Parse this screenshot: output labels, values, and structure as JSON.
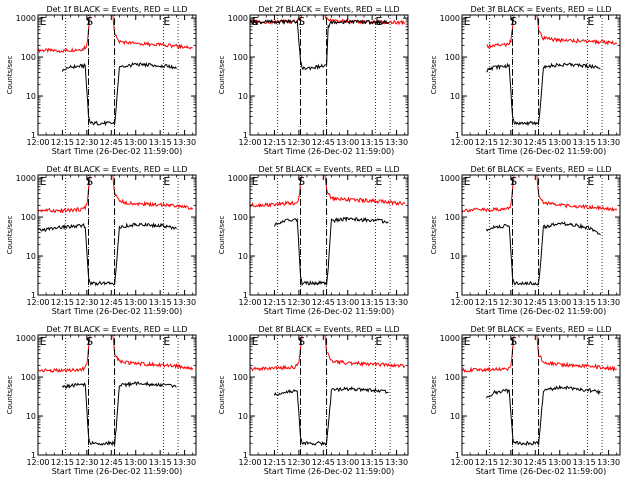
{
  "chart_data": [
    {
      "type": "line",
      "title": "Det 1f BLACK = Events, RED = LLD",
      "xlabel": "Start Time (26-Dec-02 11:59:00)",
      "ylabel": "Counts/sec",
      "x_tick_labels": [
        "12:00",
        "12:15",
        "12:30",
        "12:45",
        "13:00",
        "13:15",
        "13:30"
      ],
      "x_tick_minutes": [
        0,
        15,
        30,
        45,
        60,
        75,
        90
      ],
      "xlim_minutes": [
        0,
        97
      ],
      "y_tick_labels": [
        "1",
        "10",
        "100",
        "1000"
      ],
      "ylim": [
        1,
        1200
      ],
      "yscale": "log",
      "dotted_vlines_minutes": [
        17,
        31,
        47,
        77,
        86
      ],
      "dashed_vlines_minutes": [
        31,
        47
      ],
      "markers": [
        {
          "label": "E",
          "minute": 1
        },
        {
          "label": "S",
          "minute": 32
        },
        {
          "label": "E",
          "minute": 77
        }
      ],
      "series": [
        {
          "name": "LLD",
          "color": "#ff0000",
          "x": [
            0,
            15,
            28,
            30,
            31,
            32,
            46,
            47,
            50,
            60,
            70,
            80,
            90,
            95
          ],
          "values": [
            150,
            145,
            160,
            200,
            500,
            1200,
            1200,
            400,
            250,
            220,
            210,
            200,
            180,
            170
          ]
        },
        {
          "name": "Events",
          "color": "#000000",
          "x": [
            15,
            20,
            29,
            31,
            32,
            47,
            48,
            50,
            60,
            70,
            80,
            85
          ],
          "values": [
            45,
            55,
            60,
            3,
            2,
            2,
            5,
            55,
            65,
            62,
            58,
            50
          ]
        }
      ]
    },
    {
      "type": "line",
      "title": "Det 2f BLACK = Events, RED = LLD",
      "xlabel": "Start Time (26-Dec-02 11:59:00)",
      "ylabel": "Counts/sec",
      "x_tick_labels": [
        "12:00",
        "12:15",
        "12:30",
        "12:45",
        "13:00",
        "13:15",
        "13:30"
      ],
      "x_tick_minutes": [
        0,
        15,
        30,
        45,
        60,
        75,
        90
      ],
      "xlim_minutes": [
        0,
        97
      ],
      "y_tick_labels": [
        "1",
        "10",
        "100",
        "1000"
      ],
      "ylim": [
        1,
        1200
      ],
      "yscale": "log",
      "dotted_vlines_minutes": [
        17,
        31,
        47,
        77,
        86
      ],
      "dashed_vlines_minutes": [
        31,
        47
      ],
      "markers": [
        {
          "label": "E",
          "minute": 1
        },
        {
          "label": "S",
          "minute": 32
        },
        {
          "label": "E",
          "minute": 77
        }
      ],
      "series": [
        {
          "name": "LLD",
          "color": "#ff0000",
          "x": [
            0,
            15,
            28,
            30,
            31,
            32,
            46,
            47,
            50,
            60,
            70,
            80,
            90,
            95
          ],
          "values": [
            800,
            800,
            820,
            900,
            1000,
            1200,
            1200,
            1000,
            850,
            820,
            800,
            790,
            780,
            770
          ]
        },
        {
          "name": "Events",
          "color": "#000000",
          "x": [
            0,
            15,
            29,
            31,
            32,
            47,
            48,
            50,
            60,
            70,
            80,
            85
          ],
          "values": [
            800,
            800,
            820,
            80,
            50,
            60,
            600,
            800,
            800,
            790,
            780,
            780
          ]
        }
      ]
    },
    {
      "type": "line",
      "title": "Det 3f BLACK = Events, RED = LLD",
      "xlabel": "Start Time (26-Dec-02 11:59:00)",
      "ylabel": "Counts/sec",
      "x_tick_labels": [
        "12:00",
        "12:15",
        "12:30",
        "12:45",
        "13:00",
        "13:15",
        "13:30"
      ],
      "x_tick_minutes": [
        0,
        15,
        30,
        45,
        60,
        75,
        90
      ],
      "xlim_minutes": [
        0,
        97
      ],
      "y_tick_labels": [
        "1",
        "10",
        "100",
        "1000"
      ],
      "ylim": [
        1,
        1200
      ],
      "yscale": "log",
      "dotted_vlines_minutes": [
        17,
        31,
        47,
        77,
        86
      ],
      "dashed_vlines_minutes": [
        31,
        47
      ],
      "markers": [
        {
          "label": "E",
          "minute": 1
        },
        {
          "label": "S",
          "minute": 32
        },
        {
          "label": "E",
          "minute": 77
        }
      ],
      "series": [
        {
          "name": "LLD",
          "color": "#ff0000",
          "x": [
            15,
            20,
            28,
            30,
            31,
            32,
            46,
            47,
            50,
            60,
            70,
            80,
            90,
            95
          ],
          "values": [
            190,
            200,
            210,
            260,
            600,
            1200,
            1200,
            500,
            300,
            270,
            260,
            250,
            240,
            220
          ]
        },
        {
          "name": "Events",
          "color": "#000000",
          "x": [
            15,
            20,
            29,
            31,
            32,
            47,
            48,
            50,
            60,
            70,
            80,
            85
          ],
          "values": [
            45,
            55,
            60,
            3,
            2,
            2,
            5,
            55,
            65,
            62,
            58,
            50
          ]
        }
      ]
    },
    {
      "type": "line",
      "title": "Det 4f BLACK = Events, RED = LLD",
      "xlabel": "Start Time (26-Dec-02 11:59:00)",
      "ylabel": "Counts/sec",
      "x_tick_labels": [
        "12:00",
        "12:15",
        "12:30",
        "12:45",
        "13:00",
        "13:15",
        "13:30"
      ],
      "x_tick_minutes": [
        0,
        15,
        30,
        45,
        60,
        75,
        90
      ],
      "xlim_minutes": [
        0,
        97
      ],
      "y_tick_labels": [
        "1",
        "10",
        "100",
        "1000"
      ],
      "ylim": [
        1,
        1200
      ],
      "yscale": "log",
      "dotted_vlines_minutes": [
        17,
        31,
        47,
        77,
        86
      ],
      "dashed_vlines_minutes": [
        31,
        47
      ],
      "markers": [
        {
          "label": "E",
          "minute": 1
        },
        {
          "label": "S",
          "minute": 32
        },
        {
          "label": "E",
          "minute": 77
        }
      ],
      "series": [
        {
          "name": "LLD",
          "color": "#ff0000",
          "x": [
            0,
            15,
            28,
            30,
            31,
            32,
            46,
            47,
            50,
            60,
            70,
            80,
            90,
            95
          ],
          "values": [
            150,
            145,
            160,
            200,
            500,
            1200,
            1200,
            400,
            250,
            220,
            210,
            200,
            180,
            170
          ]
        },
        {
          "name": "Events",
          "color": "#000000",
          "x": [
            0,
            15,
            29,
            31,
            32,
            47,
            48,
            50,
            60,
            70,
            80,
            85
          ],
          "values": [
            45,
            55,
            60,
            3,
            2,
            2,
            5,
            55,
            65,
            62,
            58,
            50
          ]
        }
      ]
    },
    {
      "type": "line",
      "title": "Det 5f BLACK = Events, RED = LLD",
      "xlabel": "Start Time (26-Dec-02 11:59:00)",
      "ylabel": "Counts/sec",
      "x_tick_labels": [
        "12:00",
        "12:15",
        "12:30",
        "12:45",
        "13:00",
        "13:15",
        "13:30"
      ],
      "x_tick_minutes": [
        0,
        15,
        30,
        45,
        60,
        75,
        90
      ],
      "xlim_minutes": [
        0,
        97
      ],
      "y_tick_labels": [
        "1",
        "10",
        "100",
        "1000"
      ],
      "ylim": [
        1,
        1200
      ],
      "yscale": "log",
      "dotted_vlines_minutes": [
        17,
        31,
        47,
        77,
        86
      ],
      "dashed_vlines_minutes": [
        31,
        47
      ],
      "markers": [
        {
          "label": "E",
          "minute": 1
        },
        {
          "label": "S",
          "minute": 32
        },
        {
          "label": "E",
          "minute": 77
        }
      ],
      "series": [
        {
          "name": "LLD",
          "color": "#ff0000",
          "x": [
            0,
            15,
            28,
            30,
            31,
            32,
            46,
            47,
            50,
            60,
            70,
            80,
            90,
            95
          ],
          "values": [
            200,
            210,
            230,
            300,
            700,
            1200,
            1200,
            500,
            300,
            280,
            270,
            250,
            230,
            220
          ]
        },
        {
          "name": "Events",
          "color": "#000000",
          "x": [
            15,
            20,
            29,
            31,
            32,
            47,
            48,
            50,
            60,
            70,
            80,
            85
          ],
          "values": [
            60,
            80,
            85,
            3,
            2,
            2,
            5,
            80,
            90,
            85,
            80,
            75
          ]
        }
      ]
    },
    {
      "type": "line",
      "title": "Det 6f BLACK = Events, RED = LLD",
      "xlabel": "Start Time (26-Dec-02 11:59:00)",
      "ylabel": "Counts/sec",
      "x_tick_labels": [
        "12:00",
        "12:15",
        "12:30",
        "12:45",
        "13:00",
        "13:15",
        "13:30"
      ],
      "x_tick_minutes": [
        0,
        15,
        30,
        45,
        60,
        75,
        90
      ],
      "xlim_minutes": [
        0,
        97
      ],
      "y_tick_labels": [
        "1",
        "10",
        "100",
        "1000"
      ],
      "ylim": [
        1,
        1200
      ],
      "yscale": "log",
      "dotted_vlines_minutes": [
        17,
        31,
        47,
        77,
        86
      ],
      "dashed_vlines_minutes": [
        31,
        47
      ],
      "markers": [
        {
          "label": "E",
          "minute": 1
        },
        {
          "label": "S",
          "minute": 32
        },
        {
          "label": "E",
          "minute": 77
        }
      ],
      "series": [
        {
          "name": "LLD",
          "color": "#ff0000",
          "x": [
            0,
            15,
            28,
            30,
            31,
            32,
            46,
            47,
            50,
            60,
            70,
            80,
            90,
            95
          ],
          "values": [
            150,
            155,
            160,
            200,
            500,
            1200,
            1200,
            400,
            230,
            200,
            190,
            180,
            160,
            150
          ]
        },
        {
          "name": "Events",
          "color": "#000000",
          "x": [
            15,
            20,
            29,
            31,
            32,
            47,
            48,
            50,
            60,
            70,
            80,
            85
          ],
          "values": [
            45,
            55,
            60,
            3,
            2,
            2,
            5,
            55,
            70,
            62,
            50,
            35
          ]
        }
      ]
    },
    {
      "type": "line",
      "title": "Det 7f BLACK = Events, RED = LLD",
      "xlabel": "Start Time (26-Dec-02 11:59:00)",
      "ylabel": "Counts/sec",
      "x_tick_labels": [
        "12:00",
        "12:15",
        "12:30",
        "12:45",
        "13:00",
        "13:15",
        "13:30"
      ],
      "x_tick_minutes": [
        0,
        15,
        30,
        45,
        60,
        75,
        90
      ],
      "xlim_minutes": [
        0,
        97
      ],
      "y_tick_labels": [
        "1",
        "10",
        "100",
        "1000"
      ],
      "ylim": [
        1,
        1200
      ],
      "yscale": "log",
      "dotted_vlines_minutes": [
        17,
        31,
        47,
        77,
        86
      ],
      "dashed_vlines_minutes": [
        31,
        47
      ],
      "markers": [
        {
          "label": "E",
          "minute": 1
        },
        {
          "label": "S",
          "minute": 32
        },
        {
          "label": "E",
          "minute": 77
        }
      ],
      "series": [
        {
          "name": "LLD",
          "color": "#ff0000",
          "x": [
            0,
            15,
            28,
            30,
            31,
            32,
            46,
            47,
            50,
            60,
            70,
            80,
            90,
            95
          ],
          "values": [
            150,
            145,
            160,
            200,
            500,
            1200,
            1200,
            400,
            250,
            220,
            210,
            200,
            180,
            170
          ]
        },
        {
          "name": "Events",
          "color": "#000000",
          "x": [
            15,
            20,
            29,
            31,
            32,
            47,
            48,
            50,
            60,
            70,
            80,
            85
          ],
          "values": [
            55,
            60,
            65,
            3,
            2,
            2,
            5,
            60,
            70,
            65,
            60,
            55
          ]
        }
      ]
    },
    {
      "type": "line",
      "title": "Det 8f BLACK = Events, RED = LLD",
      "xlabel": "Start Time (26-Dec-02 11:59:00)",
      "ylabel": "Counts/sec",
      "x_tick_labels": [
        "12:00",
        "12:15",
        "12:30",
        "12:45",
        "13:00",
        "13:15",
        "13:30"
      ],
      "x_tick_minutes": [
        0,
        15,
        30,
        45,
        60,
        75,
        90
      ],
      "xlim_minutes": [
        0,
        97
      ],
      "y_tick_labels": [
        "1",
        "10",
        "100",
        "1000"
      ],
      "ylim": [
        1,
        1200
      ],
      "yscale": "log",
      "dotted_vlines_minutes": [
        17,
        31,
        47,
        77,
        86
      ],
      "dashed_vlines_minutes": [
        31,
        47
      ],
      "markers": [
        {
          "label": "E",
          "minute": 1
        },
        {
          "label": "S",
          "minute": 32
        },
        {
          "label": "E",
          "minute": 77
        }
      ],
      "series": [
        {
          "name": "LLD",
          "color": "#ff0000",
          "x": [
            0,
            15,
            28,
            30,
            31,
            32,
            46,
            47,
            50,
            60,
            70,
            80,
            90,
            95
          ],
          "values": [
            160,
            170,
            180,
            230,
            550,
            1200,
            1200,
            450,
            260,
            230,
            220,
            210,
            200,
            190
          ]
        },
        {
          "name": "Events",
          "color": "#000000",
          "x": [
            15,
            20,
            29,
            31,
            32,
            47,
            48,
            50,
            60,
            70,
            80,
            85
          ],
          "values": [
            35,
            40,
            45,
            3,
            2,
            2,
            5,
            45,
            50,
            48,
            45,
            40
          ]
        }
      ]
    },
    {
      "type": "line",
      "title": "Det 9f BLACK = Events, RED = LLD",
      "xlabel": "Start Time (26-Dec-02 11:59:00)",
      "ylabel": "Counts/sec",
      "x_tick_labels": [
        "12:00",
        "12:15",
        "12:30",
        "12:45",
        "13:00",
        "13:15",
        "13:30"
      ],
      "x_tick_minutes": [
        0,
        15,
        30,
        45,
        60,
        75,
        90
      ],
      "xlim_minutes": [
        0,
        97
      ],
      "y_tick_labels": [
        "1",
        "10",
        "100",
        "1000"
      ],
      "ylim": [
        1,
        1200
      ],
      "yscale": "log",
      "dotted_vlines_minutes": [
        17,
        31,
        47,
        77,
        86
      ],
      "dashed_vlines_minutes": [
        31,
        47
      ],
      "markers": [
        {
          "label": "E",
          "minute": 1
        },
        {
          "label": "S",
          "minute": 32
        },
        {
          "label": "E",
          "minute": 77
        }
      ],
      "series": [
        {
          "name": "LLD",
          "color": "#ff0000",
          "x": [
            0,
            15,
            28,
            30,
            31,
            32,
            46,
            47,
            50,
            60,
            70,
            80,
            90,
            95
          ],
          "values": [
            150,
            155,
            165,
            210,
            500,
            1200,
            1200,
            400,
            240,
            210,
            200,
            190,
            170,
            160
          ]
        },
        {
          "name": "Events",
          "color": "#000000",
          "x": [
            15,
            20,
            29,
            31,
            32,
            47,
            48,
            50,
            60,
            70,
            80,
            85
          ],
          "values": [
            30,
            40,
            45,
            3,
            2,
            2,
            5,
            45,
            55,
            50,
            45,
            40
          ]
        }
      ]
    }
  ]
}
